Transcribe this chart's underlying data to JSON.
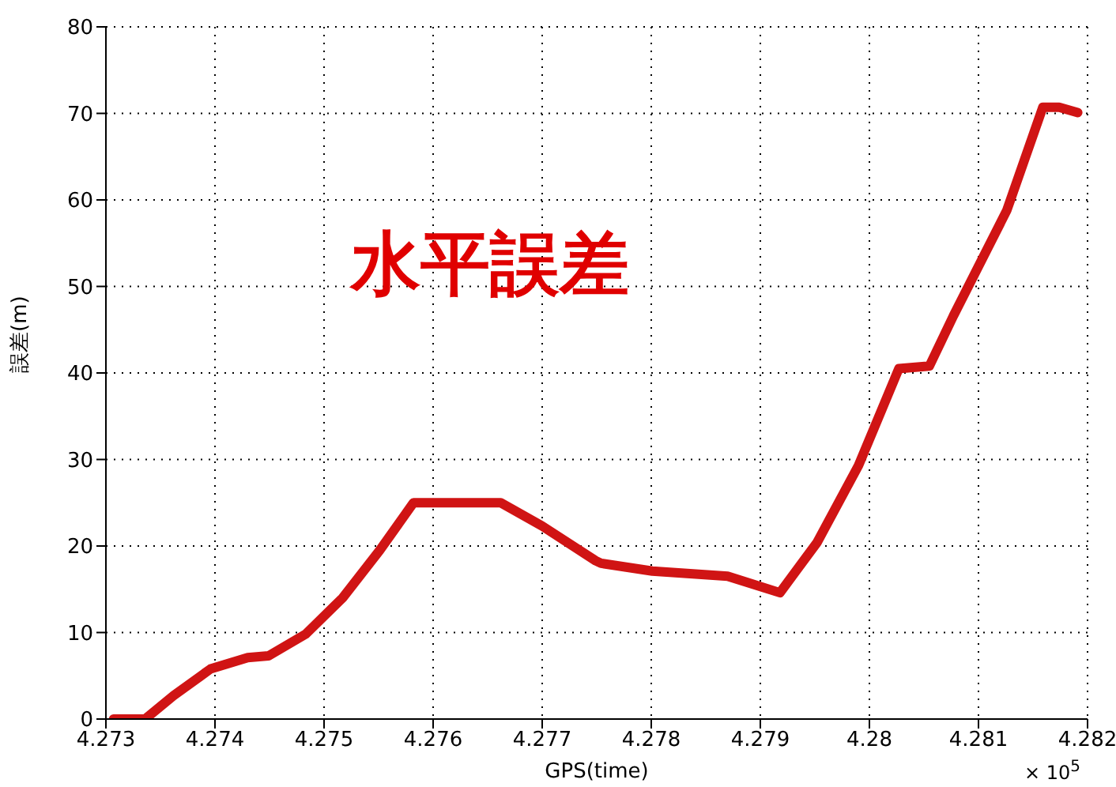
{
  "chart_data": {
    "type": "line",
    "xlabel": "GPS(time)",
    "ylabel": "誤差(m)",
    "annotations": [
      "水平誤差",
      "× 10$^{5}$"
    ],
    "x": [
      4.27307,
      4.27336,
      4.27362,
      4.27396,
      4.2743,
      4.27449,
      4.27483,
      4.27517,
      4.27551,
      4.27582,
      4.27662,
      4.277,
      4.27749,
      4.27754,
      4.27801,
      4.2787,
      4.27918,
      4.27952,
      4.2799,
      4.28027,
      4.28055,
      4.28077,
      4.28126,
      4.28159,
      4.28174,
      4.28191
    ],
    "series": [
      {
        "color": "#d01414",
        "values": [
          0,
          0,
          2.7,
          5.8,
          7.1,
          7.3,
          9.8,
          14.0,
          19.5,
          25,
          25,
          22.3,
          18.3,
          18.0,
          17.1,
          16.5,
          14.6,
          20.4,
          29.3,
          40.5,
          40.8,
          46.6,
          58.8,
          70.7,
          70.7,
          70.1
        ]
      }
    ],
    "xlim": [
      4.273,
      4.282
    ],
    "xticks": [
      4.273,
      4.274,
      4.275,
      4.276,
      4.277,
      4.278,
      4.279,
      4.28,
      4.281,
      4.282
    ],
    "ylim": [
      0,
      80
    ],
    "yticks": [
      0,
      10,
      20,
      30,
      40,
      50,
      60,
      70,
      80
    ],
    "grid": true,
    "legend": false,
    "marker": "none",
    "line_style": "solid"
  }
}
